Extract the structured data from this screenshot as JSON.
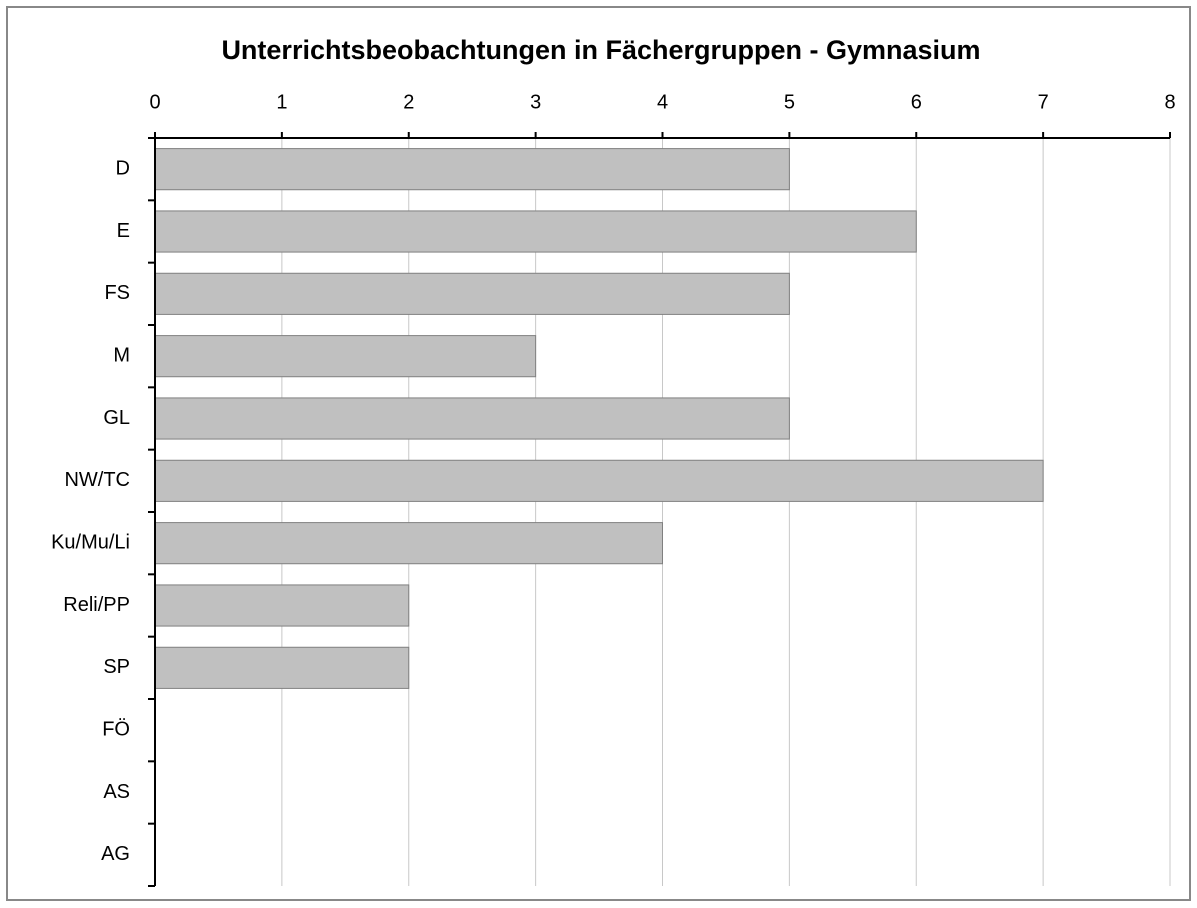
{
  "chart_data": {
    "type": "bar",
    "orientation": "horizontal",
    "title": "Unterrichtsbeobachtungen in Fächergruppen - Gymnasium",
    "categories": [
      "D",
      "E",
      "FS",
      "M",
      "GL",
      "NW/TC",
      "Ku/Mu/Li",
      "Reli/PP",
      "SP",
      "FÖ",
      "AS",
      "AG"
    ],
    "values": [
      5,
      6,
      5,
      3,
      5,
      7,
      4,
      2,
      2,
      0,
      0,
      0
    ],
    "color": "#c0c0c0",
    "xlim": [
      0,
      8
    ],
    "xticks": [
      0,
      1,
      2,
      3,
      4,
      5,
      6,
      7,
      8
    ],
    "grid": true
  }
}
